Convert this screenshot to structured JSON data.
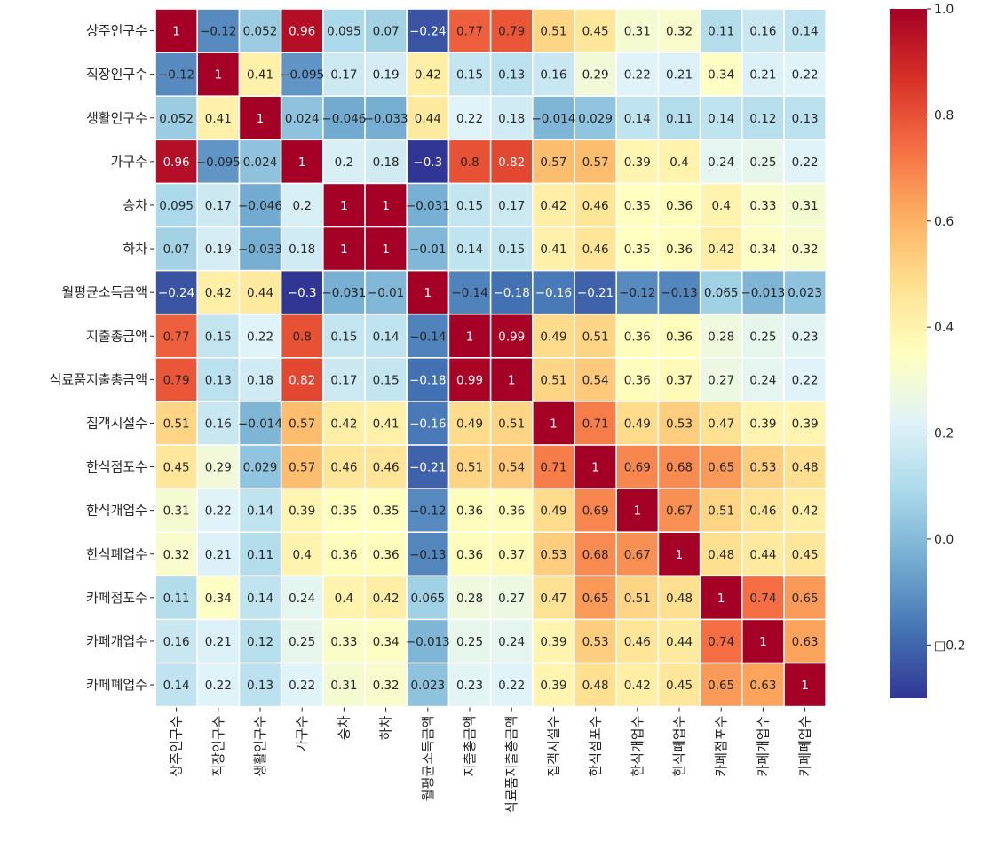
{
  "chart_data": {
    "type": "heatmap",
    "title": "",
    "xlabel": "",
    "ylabel": "",
    "labels": [
      "상주인구수",
      "직장인구수",
      "생활인구수",
      "가구수",
      "승차",
      "하차",
      "월평균소득금액",
      "지출총금액",
      "식료품지출총금액",
      "집객시설수",
      "한식점포수",
      "한식개업수",
      "한식폐업수",
      "카페점포수",
      "카페개업수",
      "카페폐업수"
    ],
    "values": [
      [
        1,
        -0.12,
        0.052,
        0.96,
        0.095,
        0.07,
        -0.24,
        0.77,
        0.79,
        0.51,
        0.45,
        0.31,
        0.32,
        0.11,
        0.16,
        0.14
      ],
      [
        -0.12,
        1,
        0.41,
        -0.095,
        0.17,
        0.19,
        0.42,
        0.15,
        0.13,
        0.16,
        0.29,
        0.22,
        0.21,
        0.34,
        0.21,
        0.22
      ],
      [
        0.052,
        0.41,
        1,
        0.024,
        -0.046,
        -0.033,
        0.44,
        0.22,
        0.18,
        -0.014,
        0.029,
        0.14,
        0.11,
        0.14,
        0.12,
        0.13
      ],
      [
        0.96,
        -0.095,
        0.024,
        1,
        0.2,
        0.18,
        -0.3,
        0.8,
        0.82,
        0.57,
        0.57,
        0.39,
        0.4,
        0.24,
        0.25,
        0.22
      ],
      [
        0.095,
        0.17,
        -0.046,
        0.2,
        1,
        1,
        -0.031,
        0.15,
        0.17,
        0.42,
        0.46,
        0.35,
        0.36,
        0.4,
        0.33,
        0.31
      ],
      [
        0.07,
        0.19,
        -0.033,
        0.18,
        1,
        1,
        -0.01,
        0.14,
        0.15,
        0.41,
        0.46,
        0.35,
        0.36,
        0.42,
        0.34,
        0.32
      ],
      [
        -0.24,
        0.42,
        0.44,
        -0.3,
        -0.031,
        -0.01,
        1,
        -0.14,
        -0.18,
        -0.16,
        -0.21,
        -0.12,
        -0.13,
        0.065,
        -0.013,
        0.023
      ],
      [
        0.77,
        0.15,
        0.22,
        0.8,
        0.15,
        0.14,
        -0.14,
        1,
        0.99,
        0.49,
        0.51,
        0.36,
        0.36,
        0.28,
        0.25,
        0.23
      ],
      [
        0.79,
        0.13,
        0.18,
        0.82,
        0.17,
        0.15,
        -0.18,
        0.99,
        1,
        0.51,
        0.54,
        0.36,
        0.37,
        0.27,
        0.24,
        0.22
      ],
      [
        0.51,
        0.16,
        -0.014,
        0.57,
        0.42,
        0.41,
        -0.16,
        0.49,
        0.51,
        1,
        0.71,
        0.49,
        0.53,
        0.47,
        0.39,
        0.39
      ],
      [
        0.45,
        0.29,
        0.029,
        0.57,
        0.46,
        0.46,
        -0.21,
        0.51,
        0.54,
        0.71,
        1,
        0.69,
        0.68,
        0.65,
        0.53,
        0.48
      ],
      [
        0.31,
        0.22,
        0.14,
        0.39,
        0.35,
        0.35,
        -0.12,
        0.36,
        0.36,
        0.49,
        0.69,
        1,
        0.67,
        0.51,
        0.46,
        0.42
      ],
      [
        0.32,
        0.21,
        0.11,
        0.4,
        0.36,
        0.36,
        -0.13,
        0.36,
        0.37,
        0.53,
        0.68,
        0.67,
        1,
        0.48,
        0.44,
        0.45
      ],
      [
        0.11,
        0.34,
        0.14,
        0.24,
        0.4,
        0.42,
        0.065,
        0.28,
        0.27,
        0.47,
        0.65,
        0.51,
        0.48,
        1,
        0.74,
        0.65
      ],
      [
        0.16,
        0.21,
        0.12,
        0.25,
        0.33,
        0.34,
        -0.013,
        0.25,
        0.24,
        0.39,
        0.53,
        0.46,
        0.44,
        0.74,
        1,
        0.63
      ],
      [
        0.14,
        0.22,
        0.13,
        0.22,
        0.31,
        0.32,
        0.023,
        0.23,
        0.22,
        0.39,
        0.48,
        0.42,
        0.45,
        0.65,
        0.63,
        1
      ]
    ],
    "value_range": [
      -0.3,
      1.0
    ],
    "colormap": "RdYlBu_r",
    "colorbar_ticks": [
      {
        "value": 1.0,
        "label": "1.0"
      },
      {
        "value": 0.8,
        "label": "0.8"
      },
      {
        "value": 0.6,
        "label": "0.6"
      },
      {
        "value": 0.4,
        "label": "0.4"
      },
      {
        "value": 0.2,
        "label": "0.2"
      },
      {
        "value": 0.0,
        "label": "0.0"
      },
      {
        "value": -0.2,
        "label": "□0.2"
      }
    ],
    "annotations": true,
    "grid": false
  },
  "colors": {
    "cell_separator": "#ffffff",
    "axis_text": "#262626",
    "annotation_dark": "#262626",
    "annotation_light": "#ffffff",
    "colormap_stops": [
      "#313695",
      "#4575b4",
      "#74add1",
      "#abd9e9",
      "#e0f3f8",
      "#ffffbf",
      "#fee090",
      "#fdae61",
      "#f46d43",
      "#d73027",
      "#a50026"
    ]
  }
}
